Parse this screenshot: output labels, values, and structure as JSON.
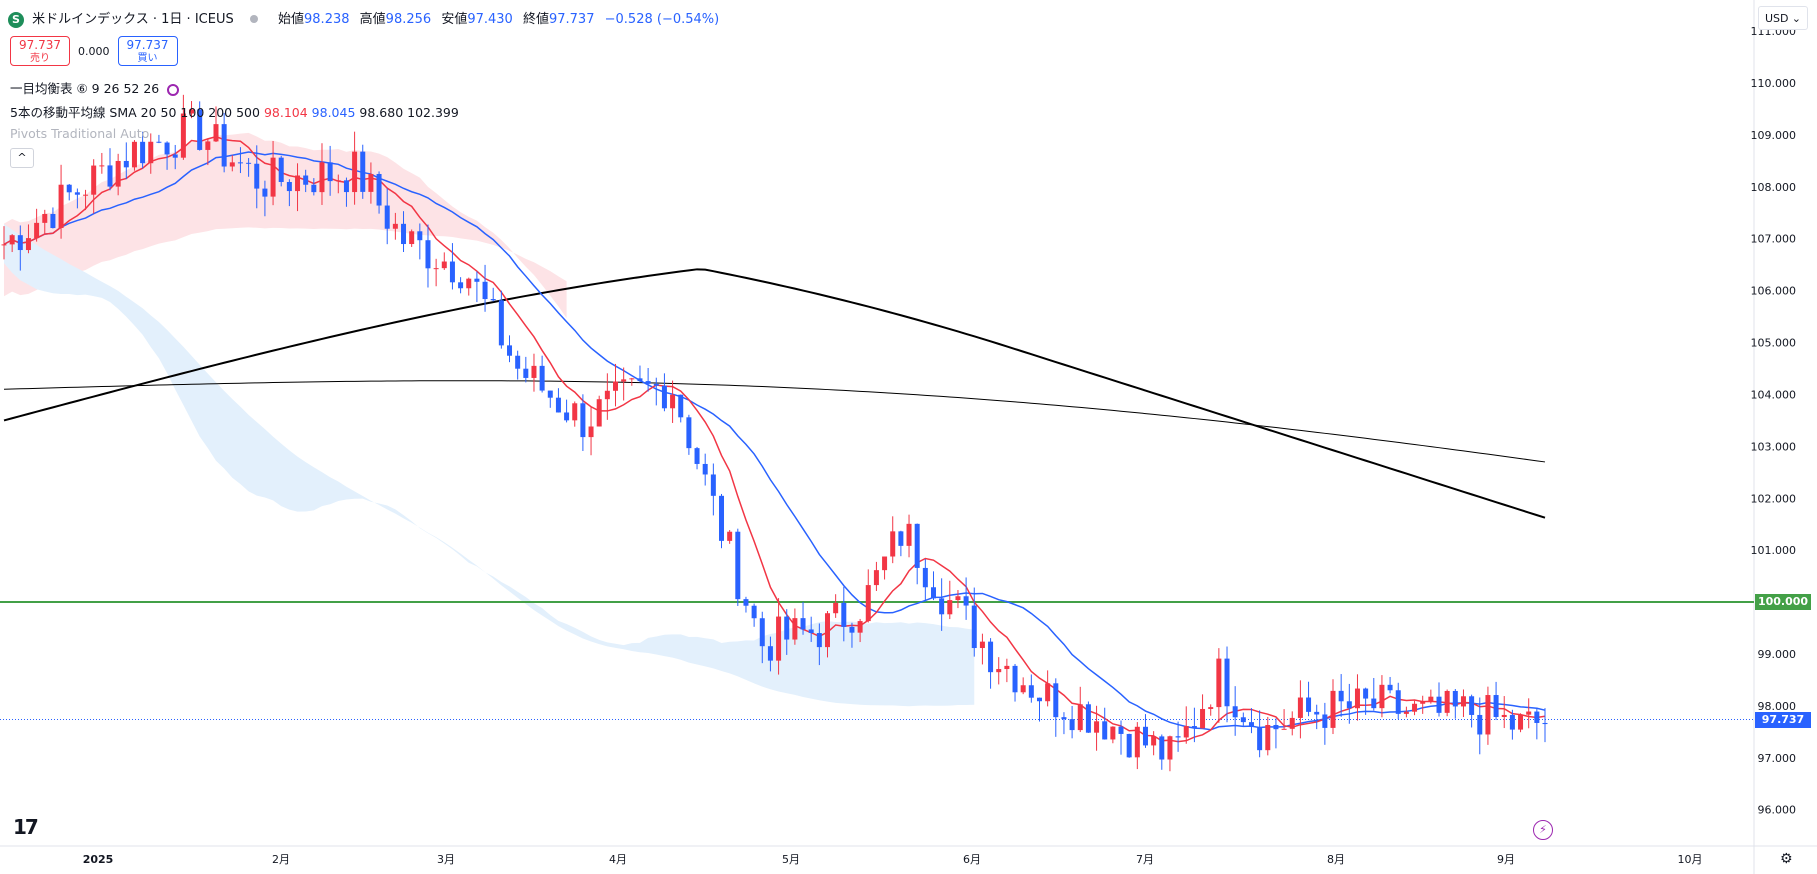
{
  "header": {
    "symbol_icon": "S",
    "symbol": "米ドルインデックス · 1日 · ICEUS",
    "open_label": "始値",
    "open": "98.238",
    "high_label": "高値",
    "high": "98.256",
    "low_label": "安値",
    "low": "97.430",
    "close_label": "終値",
    "close": "97.737",
    "change": "−0.528 (−0.54%)"
  },
  "trade": {
    "sell_price": "97.737",
    "sell_label": "売り",
    "spread": "0.000",
    "buy_price": "97.737",
    "buy_label": "買い"
  },
  "indicators": {
    "ichimoku": "一目均衡表 ⑥ 9 26 52 26",
    "sma_label": "5本の移動平均線 SMA 20 50 100 200 500",
    "sma20": "98.104",
    "sma50": "98.045",
    "sma100": "98.680",
    "sma200": "102.399",
    "pivots": "Pivots Traditional Auto"
  },
  "collapse_icon": "chevron-up-icon",
  "currency": "USD",
  "chart_data": {
    "type": "candlestick",
    "y_axis_ticks": [
      "111.000",
      "110.000",
      "109.000",
      "108.000",
      "107.000",
      "106.000",
      "105.000",
      "104.000",
      "103.000",
      "102.000",
      "101.000",
      "99.000",
      "98.000",
      "97.000",
      "96.000"
    ],
    "ylim": [
      95.3,
      111.6
    ],
    "x_axis_ticks": [
      "2025",
      "2月",
      "3月",
      "4月",
      "5月",
      "6月",
      "7月",
      "8月",
      "9月",
      "10月"
    ],
    "horizontal_line": {
      "value": 100.0,
      "label": "100.000",
      "color": "#43a047"
    },
    "last_price": {
      "value": 97.737,
      "label": "97.737",
      "color": "#2962ff"
    },
    "colors": {
      "up": "#f23645",
      "down": "#2962ff",
      "sma20": "#f23645",
      "sma50": "#2962ff",
      "sma100": "#000000",
      "sma200": "#000000",
      "cloud_bull": "#e3f0fc",
      "cloud_bear": "#fde3e6"
    }
  }
}
